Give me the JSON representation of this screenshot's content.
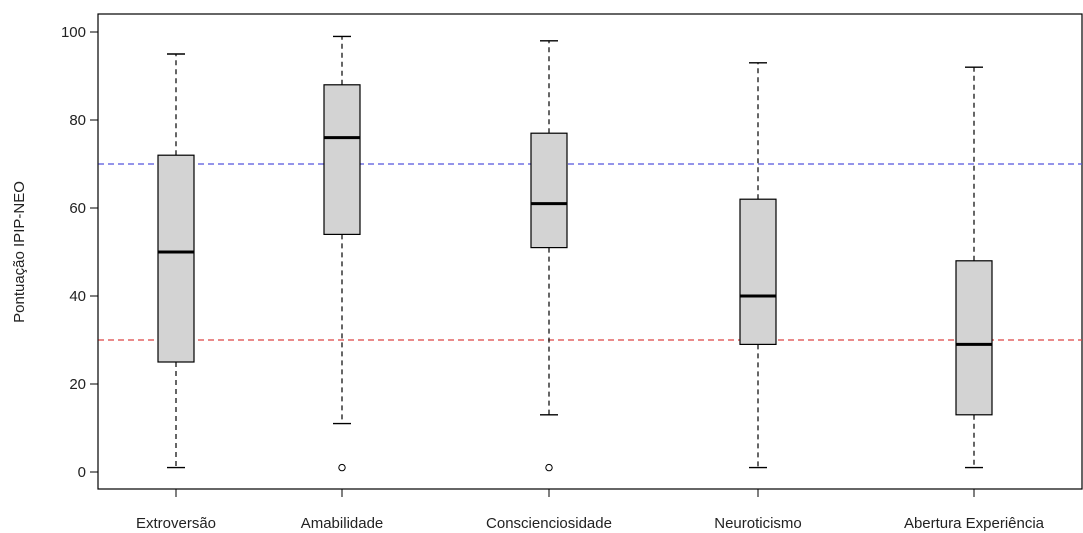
{
  "chart_data": {
    "type": "boxplot",
    "title": "",
    "xlabel": "",
    "ylabel": "Pontuação IPIP-NEO",
    "ylim": [
      -3,
      104
    ],
    "yticks": [
      0,
      20,
      40,
      60,
      80,
      100
    ],
    "grid": false,
    "categories": [
      "Extroversão",
      "Amabilidade",
      "Conscienciosidade",
      "Neuroticismo",
      "Abertura Experiência"
    ],
    "boxes": [
      {
        "min": 1,
        "q1": 25,
        "median": 50,
        "q3": 72,
        "max": 95,
        "outliers": []
      },
      {
        "min": 11,
        "q1": 54,
        "median": 76,
        "q3": 88,
        "max": 99,
        "outliers": [
          1
        ]
      },
      {
        "min": 13,
        "q1": 51,
        "median": 61,
        "q3": 77,
        "max": 98,
        "outliers": [
          1
        ]
      },
      {
        "min": 1,
        "q1": 29,
        "median": 40,
        "q3": 62,
        "max": 93,
        "outliers": []
      },
      {
        "min": 1,
        "q1": 13,
        "median": 29,
        "q3": 48,
        "max": 92,
        "outliers": []
      }
    ],
    "reference_lines": [
      {
        "y": 70,
        "color": "#5555dd",
        "style": "dashed"
      },
      {
        "y": 30,
        "color": "#dd4444",
        "style": "dashed"
      }
    ],
    "box_fill": "#d3d3d3",
    "box_stroke": "#000000"
  }
}
